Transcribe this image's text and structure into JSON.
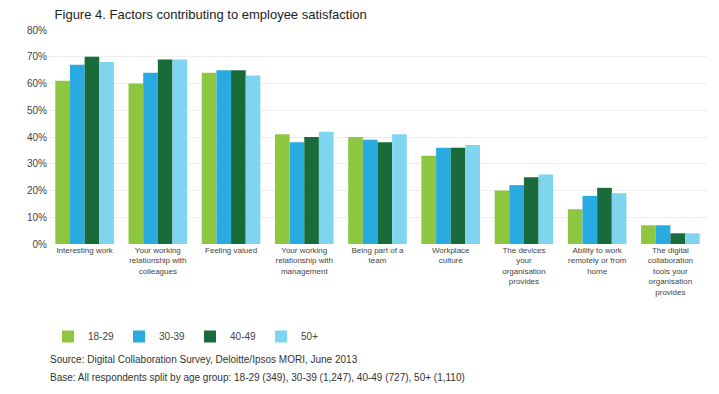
{
  "chart_data": {
    "type": "bar",
    "title": "Figure 4. Factors contributing to employee satisfaction",
    "categories": [
      "Interesting work",
      "Your working\nrelationship with\ncolleagues",
      "Feeling valued",
      "Your working\nrelationship with\nmanagement",
      "Being part of a\nteam",
      "Workplace\nculture",
      "The devices\nyour\norganisation\nprovides",
      "Ability to work\nremotely or from\nhome",
      "The digital\ncollaboration\ntools your\norganisation\nprovides"
    ],
    "series": [
      {
        "name": "18-29",
        "color": "#8dc63f",
        "values": [
          61,
          60,
          64,
          41,
          40,
          33,
          20,
          13,
          7
        ]
      },
      {
        "name": "30-39",
        "color": "#29abe2",
        "values": [
          67,
          64,
          65,
          38,
          39,
          36,
          22,
          18,
          7
        ]
      },
      {
        "name": "40-49",
        "color": "#1a6b3c",
        "values": [
          70,
          69,
          65,
          40,
          38,
          36,
          25,
          21,
          4
        ]
      },
      {
        "name": "50+",
        "color": "#7fd4f0",
        "values": [
          68,
          69,
          63,
          42,
          41,
          37,
          26,
          19,
          4
        ]
      }
    ],
    "ylim": [
      0,
      80
    ],
    "yticks": [
      {
        "value": 0,
        "label": "0%"
      },
      {
        "value": 10,
        "label": "10%"
      },
      {
        "value": 20,
        "label": "20%"
      },
      {
        "value": 30,
        "label": "30%"
      },
      {
        "value": 40,
        "label": "40%"
      },
      {
        "value": 50,
        "label": "50%"
      },
      {
        "value": 60,
        "label": "60%"
      },
      {
        "value": 70,
        "label": "70%"
      },
      {
        "value": 80,
        "label": "80%"
      }
    ],
    "grid": true,
    "legend": "bottom",
    "annotations": [
      "Source: Digital Collaboration Survey, Deloitte/Ipsos MORI, June 2013",
      "Base: All respondents split by age group: 18-29 (349), 30-39 (1,247), 40-49 (727), 50+ (1,110)"
    ]
  }
}
